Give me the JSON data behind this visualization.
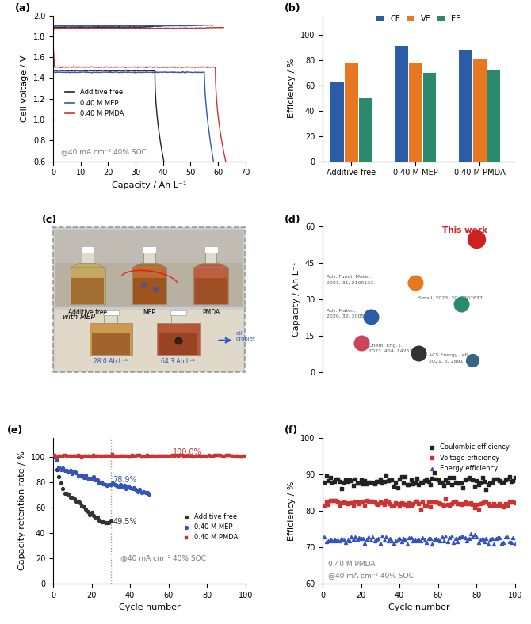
{
  "panel_a": {
    "ylabel": "Cell voltage / V",
    "xlabel": "Capacity / Ah L⁻¹",
    "annotation": "@40 mA cm⁻² 40% SOC",
    "ylim": [
      0.6,
      2.0
    ],
    "xlim": [
      0,
      70
    ],
    "yticks": [
      0.6,
      0.8,
      1.0,
      1.2,
      1.4,
      1.6,
      1.8,
      2.0
    ],
    "xticks": [
      0,
      10,
      20,
      30,
      40,
      50,
      60,
      70
    ],
    "legend": [
      "Additive free",
      "0.40 M MEP",
      "0.40 M PMDA"
    ],
    "colors": [
      "#222222",
      "#3355bb",
      "#cc3333"
    ]
  },
  "panel_b": {
    "ylabel": "Efficiency / %",
    "xlabel": "",
    "categories": [
      "Additive free",
      "0.40 M MEP",
      "0.40 M PMDA"
    ],
    "legend": [
      "CE",
      "VE",
      "EE"
    ],
    "colors": [
      "#2b5ca8",
      "#e87722",
      "#2a8a6e"
    ],
    "values": {
      "CE": [
        63,
        91,
        88
      ],
      "VE": [
        78,
        77,
        81
      ],
      "EE": [
        50,
        70,
        72
      ]
    },
    "ylim": [
      0,
      115
    ],
    "yticks": [
      0,
      20,
      40,
      60,
      80,
      100
    ]
  },
  "panel_e": {
    "ylabel": "Capacity retention rate / %",
    "xlabel": "Cycle number",
    "annotation": "@40 mA cm⁻² 40% SOC",
    "ylim": [
      0,
      115
    ],
    "xlim": [
      0,
      100
    ],
    "yticks": [
      0,
      20,
      40,
      60,
      80,
      100
    ],
    "xticks": [
      0,
      20,
      40,
      60,
      80,
      100
    ],
    "legend": [
      "Additive free",
      "0.40 M MEP",
      "0.40 M PMDA"
    ],
    "colors": [
      "#333333",
      "#3355bb",
      "#cc3333"
    ],
    "labels": [
      "49.5%",
      "78.9%",
      "100.0%"
    ],
    "label_colors": [
      "#333333",
      "#3355bb",
      "#cc3333"
    ],
    "vline_x": 30
  },
  "panel_f": {
    "ylabel": "Efficiency / %",
    "xlabel": "Cycle number",
    "annotation1": "0.40 M PMDA",
    "annotation2": "@40 mA cm⁻² 40% SOC",
    "ylim": [
      60,
      100
    ],
    "xlim": [
      0,
      100
    ],
    "yticks": [
      60,
      70,
      80,
      90,
      100
    ],
    "xticks": [
      0,
      20,
      40,
      60,
      80,
      100
    ],
    "legend": [
      "Coulombic efficiency",
      "Voltage efficiency",
      "Energy efficiency"
    ],
    "colors": [
      "#222222",
      "#cc3333",
      "#3355bb"
    ]
  }
}
